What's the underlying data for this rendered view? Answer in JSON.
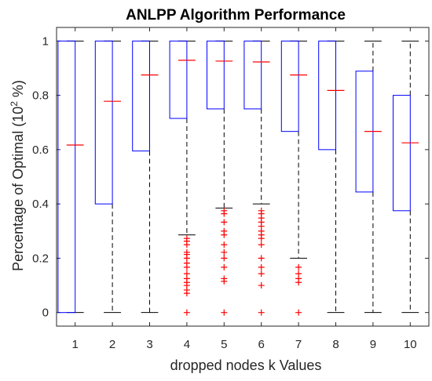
{
  "chart_data": {
    "type": "boxplot",
    "title": "ANLPP Algorithm Performance",
    "xlabel": "dropped nodes k Values",
    "ylabel": "Percentage of Optimal (10",
    "ylabel_sup": "2",
    "ylabel_tail": " %)",
    "ylim": [
      -0.05,
      1.05
    ],
    "yticks": [
      0,
      0.2,
      0.4,
      0.6,
      0.8,
      1
    ],
    "ytick_labels": [
      "0",
      "0.2",
      "0.4",
      "0.6",
      "0.8",
      "1"
    ],
    "categories": [
      "1",
      "2",
      "3",
      "4",
      "5",
      "6",
      "7",
      "8",
      "9",
      "10"
    ],
    "grid": false,
    "colors": {
      "box": "#0000ff",
      "median": "#ff0000",
      "whisker": "#000000",
      "outlier": "#ff0000",
      "axis": "#262626"
    },
    "boxes": [
      {
        "k": "1",
        "q1": 0.0,
        "median": 0.617,
        "q3": 1.0,
        "whisker_low": 0.0,
        "whisker_high": 1.0,
        "outliers": []
      },
      {
        "k": "2",
        "q1": 0.4,
        "median": 0.778,
        "q3": 1.0,
        "whisker_low": 0.0,
        "whisker_high": 1.0,
        "outliers": []
      },
      {
        "k": "3",
        "q1": 0.595,
        "median": 0.875,
        "q3": 1.0,
        "whisker_low": 0.0,
        "whisker_high": 1.0,
        "outliers": []
      },
      {
        "k": "4",
        "q1": 0.715,
        "median": 0.929,
        "q3": 1.0,
        "whisker_low": 0.286,
        "whisker_high": 1.0,
        "outliers": [
          0.0,
          0.071,
          0.083,
          0.1,
          0.111,
          0.125,
          0.143,
          0.167,
          0.182,
          0.2,
          0.214,
          0.222,
          0.25,
          0.263,
          0.273
        ]
      },
      {
        "k": "5",
        "q1": 0.75,
        "median": 0.926,
        "q3": 1.0,
        "whisker_low": 0.385,
        "whisker_high": 1.0,
        "outliers": [
          0.0,
          0.115,
          0.125,
          0.167,
          0.2,
          0.222,
          0.25,
          0.286,
          0.3,
          0.333,
          0.364,
          0.375
        ]
      },
      {
        "k": "6",
        "q1": 0.75,
        "median": 0.923,
        "q3": 1.0,
        "whisker_low": 0.4,
        "whisker_high": 1.0,
        "outliers": [
          0.0,
          0.1,
          0.143,
          0.167,
          0.2,
          0.25,
          0.273,
          0.286,
          0.3,
          0.318,
          0.333,
          0.348,
          0.364,
          0.375
        ]
      },
      {
        "k": "7",
        "q1": 0.667,
        "median": 0.875,
        "q3": 1.0,
        "whisker_low": 0.2,
        "whisker_high": 1.0,
        "outliers": [
          0.0,
          0.111,
          0.125,
          0.143,
          0.167
        ]
      },
      {
        "k": "8",
        "q1": 0.6,
        "median": 0.818,
        "q3": 1.0,
        "whisker_low": 0.0,
        "whisker_high": 1.0,
        "outliers": []
      },
      {
        "k": "9",
        "q1": 0.444,
        "median": 0.667,
        "q3": 0.889,
        "whisker_low": 0.0,
        "whisker_high": 1.0,
        "outliers": []
      },
      {
        "k": "10",
        "q1": 0.375,
        "median": 0.625,
        "q3": 0.8,
        "whisker_low": 0.0,
        "whisker_high": 1.0,
        "outliers": []
      }
    ]
  }
}
